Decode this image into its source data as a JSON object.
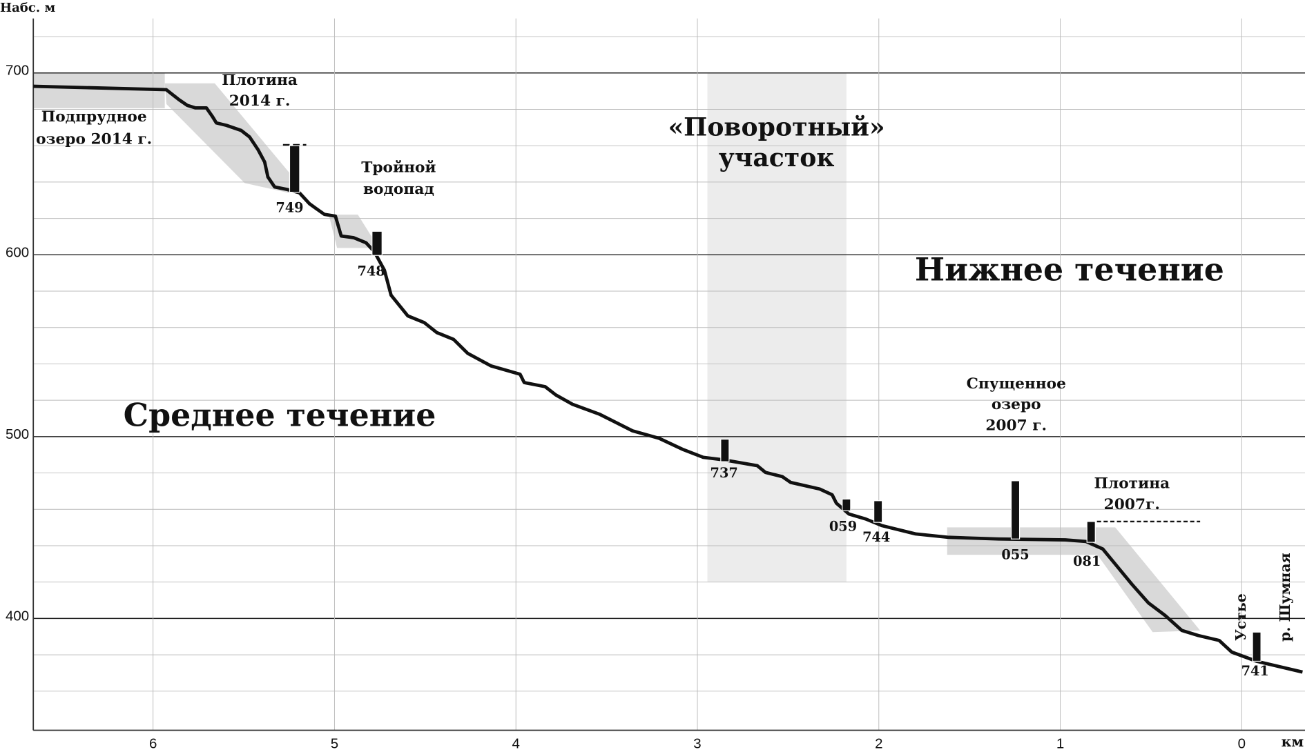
{
  "chart_data": {
    "type": "line",
    "y_label": "Набс. м",
    "x_label": "км",
    "xlim": [
      6.66,
      -0.335
    ],
    "xticks": [
      6,
      5,
      4,
      3,
      2,
      1,
      0
    ],
    "ylim": [
      338.5,
      730
    ],
    "yticks": [
      400,
      500,
      600,
      700
    ],
    "y_minor_ticks": [
      360,
      380,
      420,
      440,
      460,
      480,
      520,
      540,
      560,
      580,
      620,
      640,
      660,
      680,
      720
    ],
    "grid": true,
    "color": "#111111",
    "x": [
      6.66,
      5.927,
      5.858,
      5.812,
      5.766,
      5.706,
      5.674,
      5.651,
      5.596,
      5.514,
      5.468,
      5.422,
      5.385,
      5.367,
      5.33,
      5.261,
      5.193,
      5.138,
      5.101,
      5.055,
      4.995,
      4.963,
      4.894,
      4.826,
      4.78,
      4.725,
      4.688,
      4.596,
      4.505,
      4.436,
      4.344,
      4.266,
      4.138,
      3.977,
      3.954,
      3.839,
      3.78,
      3.688,
      3.541,
      3.358,
      3.211,
      3.083,
      2.968,
      2.853,
      2.67,
      2.624,
      2.532,
      2.486,
      2.326,
      2.257,
      2.234,
      2.165,
      2.073,
      1.982,
      1.798,
      1.615,
      1.339,
      0.972,
      0.858,
      0.766,
      0.697,
      0.606,
      0.514,
      0.422,
      0.33,
      0.239,
      0.124,
      0.055,
      -0.083,
      -0.335
    ],
    "values": [
      692.7,
      690.8,
      685.4,
      682.2,
      680.8,
      680.8,
      676.2,
      672.5,
      671.2,
      668.4,
      664.8,
      657.9,
      651.0,
      642.8,
      637.3,
      635.9,
      634.1,
      628.1,
      625.4,
      622.2,
      621.3,
      610.3,
      609.4,
      606.6,
      601.6,
      591.5,
      577.8,
      566.4,
      562.7,
      557.2,
      553.5,
      545.8,
      538.9,
      534.3,
      529.7,
      527.5,
      522.9,
      517.8,
      512.4,
      503.2,
      499.1,
      493.1,
      488.6,
      487.2,
      484.0,
      480.3,
      478.0,
      474.8,
      471.2,
      468.0,
      463.4,
      457.4,
      454.7,
      451.0,
      446.5,
      444.6,
      443.7,
      443.2,
      442.3,
      438.2,
      429.9,
      418.9,
      408.5,
      401.6,
      393.4,
      390.6,
      387.9,
      381.5,
      376.4,
      370.5
    ],
    "annotations": [
      {
        "lines": [
          "Подпрудное",
          "озеро 2014 г."
        ]
      },
      {
        "lines": [
          "Плотина",
          "2014 г."
        ]
      },
      {
        "lines": [
          "Тройной",
          "водопад"
        ]
      },
      {
        "lines": [
          "«Поворотный»",
          "участок"
        ]
      },
      {
        "lines": [
          "Нижнее течение"
        ]
      },
      {
        "lines": [
          "Среднее течение"
        ]
      },
      {
        "lines": [
          "Спущенное",
          "озеро",
          "2007 г."
        ]
      },
      {
        "lines": [
          "Плотина",
          "2007г."
        ]
      },
      {
        "lines": [
          "Устье"
        ]
      },
      {
        "lines": [
          "р. Шумная"
        ]
      }
    ],
    "markers": [
      "749",
      "748",
      "737",
      "059",
      "744",
      "055",
      "081",
      "741"
    ]
  }
}
